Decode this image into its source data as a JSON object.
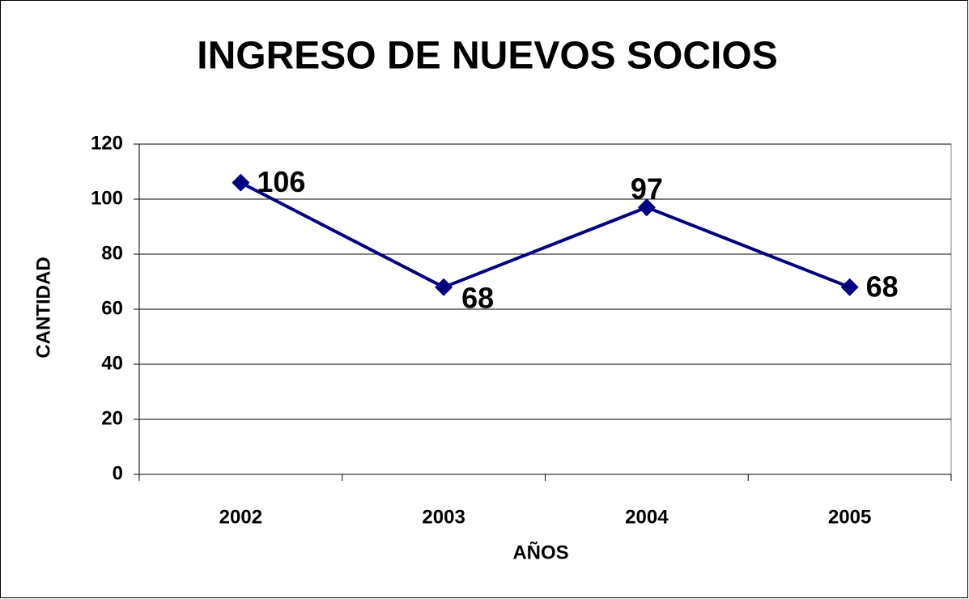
{
  "chart_data": {
    "type": "line",
    "title": "INGRESO DE NUEVOS SOCIOS",
    "x_label": "AÑOS",
    "y_label": "CANTIDAD",
    "categories": [
      "2002",
      "2003",
      "2004",
      "2005"
    ],
    "series": [
      {
        "name": "Socios",
        "color": "#000080",
        "values": [
          106,
          68,
          97,
          68
        ]
      }
    ],
    "ylim": [
      0,
      120
    ],
    "yticks": [
      0,
      20,
      40,
      60,
      80,
      100,
      120
    ],
    "grid": true
  }
}
